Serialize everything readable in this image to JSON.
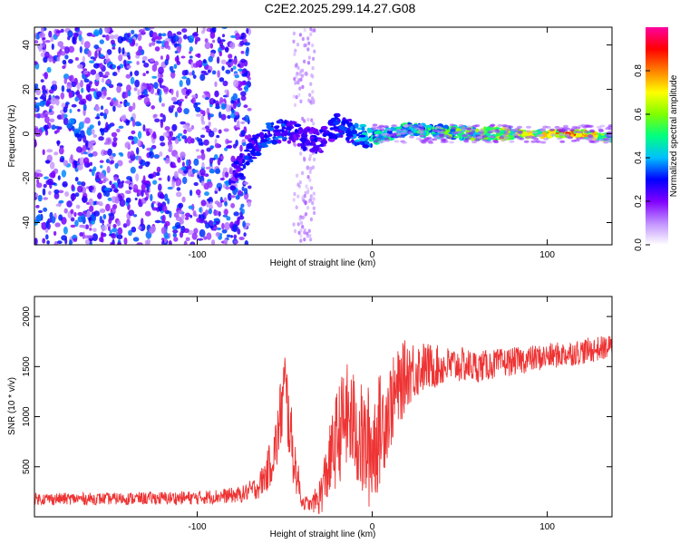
{
  "title": "C2E2.2025.299.14.27.G08",
  "chart_data": [
    {
      "type": "heatmap",
      "panel": "top",
      "xlabel": "Height of straight line (km)",
      "ylabel": "Frequency (Hz)",
      "xlim": [
        -193,
        137
      ],
      "ylim": [
        -50,
        48
      ],
      "xticks": [
        -100,
        0,
        100
      ],
      "xtick_labels": [
        "-100",
        "0",
        "100"
      ],
      "yticks": [
        -40,
        -20,
        0,
        20,
        40
      ],
      "ytick_labels": [
        "-40",
        "-20",
        "0",
        "20",
        "40"
      ],
      "colorbar": {
        "label": "Normalized spectral amplitude",
        "range": [
          0,
          1
        ],
        "ticks": [
          0.0,
          0.2,
          0.4,
          0.6,
          0.8
        ],
        "tick_labels": [
          "0.0",
          "0.2",
          "0.4",
          "0.6",
          "0.8"
        ],
        "colors": [
          "#ffffff",
          "#c090ff",
          "#8000ff",
          "#0000ff",
          "#00c0ff",
          "#00ff80",
          "#80ff00",
          "#ffff00",
          "#ff8000",
          "#ff0000",
          "#ff00a0"
        ]
      },
      "ridge": {
        "description_x": [
          -80,
          -70,
          -60,
          -50,
          -40,
          -30,
          -20,
          -10,
          0,
          20,
          40,
          60,
          80,
          100,
          120,
          137
        ],
        "center_hz": [
          -20,
          -8,
          0,
          2,
          -2,
          -4,
          4,
          0,
          -2,
          2,
          1,
          0,
          0,
          0,
          0,
          -2
        ],
        "amplitude": [
          0.3,
          0.35,
          0.4,
          0.35,
          0.3,
          0.3,
          0.35,
          0.4,
          0.5,
          0.55,
          0.6,
          0.65,
          0.75,
          0.85,
          0.95,
          0.6
        ]
      }
    },
    {
      "type": "line",
      "panel": "bottom",
      "xlabel": "Height of straight line (km)",
      "ylabel": "SNR (10 * v/v)",
      "xlim": [
        -193,
        137
      ],
      "ylim": [
        0,
        2200
      ],
      "xticks": [
        -100,
        0,
        100
      ],
      "xtick_labels": [
        "-100",
        "0",
        "100"
      ],
      "yticks": [
        500,
        1000,
        1500,
        2000
      ],
      "ytick_labels": [
        "500",
        "1000",
        "1500",
        "2000"
      ],
      "series": [
        {
          "name": "SNR",
          "color": "#ee3333",
          "x": [
            -193,
            -150,
            -100,
            -75,
            -65,
            -60,
            -55,
            -50,
            -45,
            -40,
            -35,
            -30,
            -25,
            -20,
            -15,
            -10,
            -5,
            0,
            10,
            20,
            30,
            40,
            50,
            60,
            80,
            100,
            120,
            137
          ],
          "y": [
            180,
            180,
            190,
            220,
            300,
            450,
            700,
            1300,
            600,
            150,
            120,
            200,
            500,
            800,
            1000,
            900,
            700,
            700,
            1100,
            1450,
            1500,
            1500,
            1520,
            1500,
            1550,
            1600,
            1650,
            1700
          ],
          "spread": [
            60,
            60,
            70,
            80,
            120,
            200,
            300,
            450,
            300,
            80,
            60,
            200,
            350,
            500,
            550,
            550,
            600,
            650,
            450,
            350,
            250,
            200,
            180,
            160,
            140,
            130,
            130,
            120
          ]
        }
      ]
    }
  ]
}
